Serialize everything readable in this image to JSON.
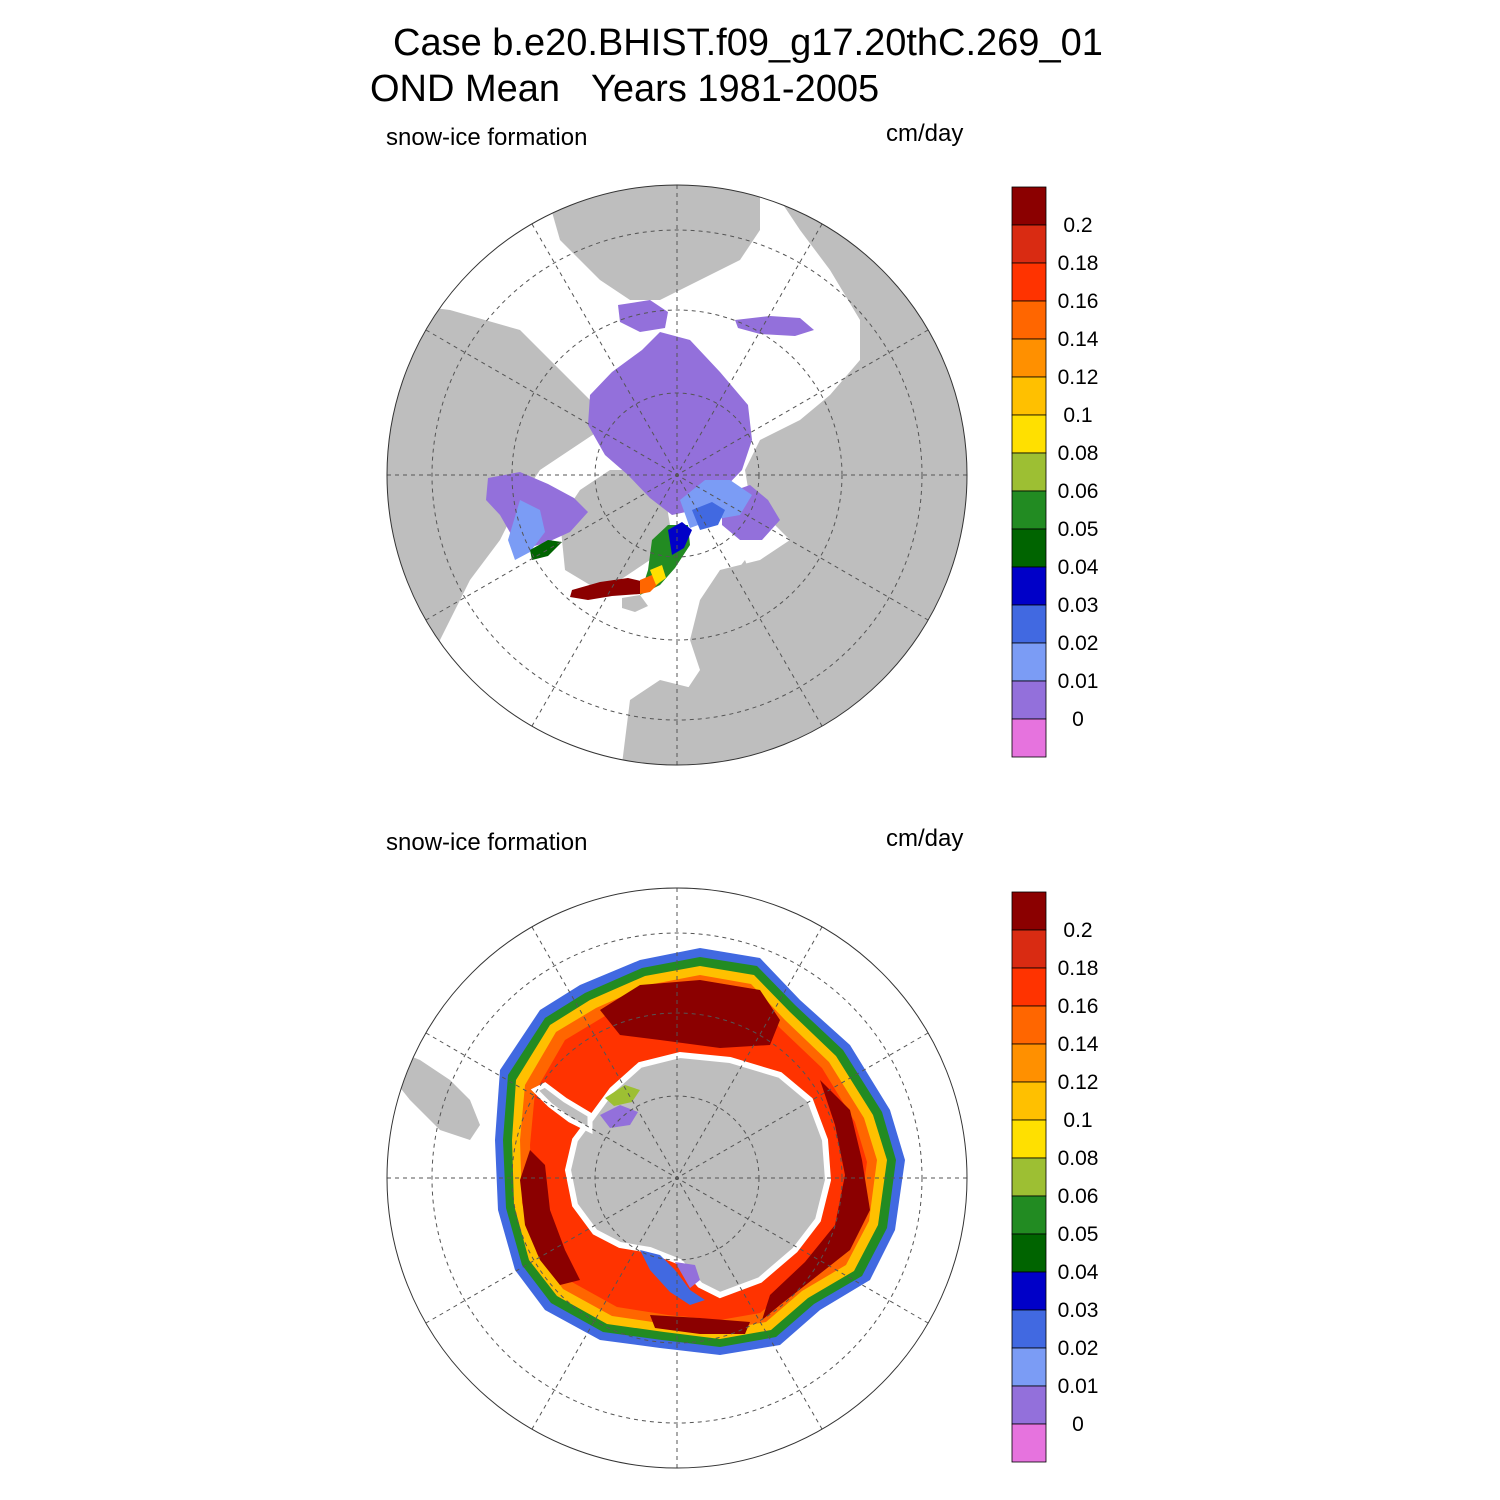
{
  "title": {
    "line1": "Case b.e20.BHIST.f09_g17.20thC.269_01",
    "line2": "OND Mean   Years 1981-2005"
  },
  "panels": [
    {
      "id": "nh",
      "left_label": "snow-ice formation",
      "right_label": "cm/day"
    },
    {
      "id": "sh",
      "left_label": "snow-ice formation",
      "right_label": "cm/day"
    }
  ],
  "colorbar": {
    "tick_labels": [
      "0.2",
      "0.18",
      "0.16",
      "0.14",
      "0.12",
      "0.1",
      "0.08",
      "0.06",
      "0.05",
      "0.04",
      "0.03",
      "0.02",
      "0.01",
      "0"
    ],
    "colors": [
      "#8b0000",
      "#d92b12",
      "#ff3300",
      "#ff6600",
      "#ff9000",
      "#ffc000",
      "#ffe000",
      "#9dbf33",
      "#228b22",
      "#006400",
      "#0000c8",
      "#4169e1",
      "#7b9cf5",
      "#9370db",
      "#e673de"
    ]
  },
  "colors": {
    "land": "#bebebe",
    "ocean": "#ffffff",
    "grid": "#555555"
  }
}
